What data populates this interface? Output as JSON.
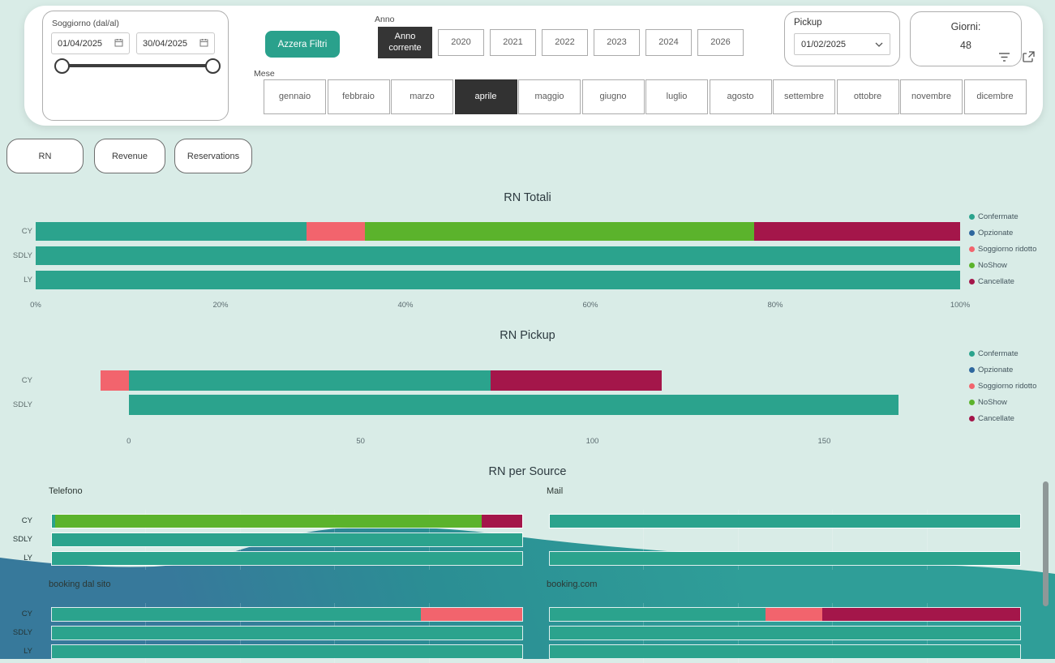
{
  "header": {
    "soggiorno": {
      "label": "Soggiorno (dal/al)",
      "date_from": "01/04/2025",
      "date_to": "30/04/2025"
    },
    "azzera_filtri": "Azzera Filtri",
    "anno": {
      "label": "Anno",
      "selected": "Anno corrente",
      "options": [
        "Anno corrente",
        "2020",
        "2021",
        "2022",
        "2023",
        "2024",
        "2026"
      ]
    },
    "mese": {
      "label": "Mese",
      "selected": "aprile",
      "options": [
        "gennaio",
        "febbraio",
        "marzo",
        "aprile",
        "maggio",
        "giugno",
        "luglio",
        "agosto",
        "settembre",
        "ottobre",
        "novembre",
        "dicembre"
      ]
    },
    "pickup": {
      "label": "Pickup",
      "value": "01/02/2025"
    },
    "giorni": {
      "label": "Giorni:",
      "value": "48"
    }
  },
  "tabs": [
    {
      "label": "RN"
    },
    {
      "label": "Revenue"
    },
    {
      "label": "Reservations"
    }
  ],
  "legend": {
    "items": [
      {
        "label": "Confermate",
        "color": "#2BA38D"
      },
      {
        "label": "Opzionate",
        "color": "#2E679E"
      },
      {
        "label": "Soggiorno ridotto",
        "color": "#F2646D"
      },
      {
        "label": "NoShow",
        "color": "#5BB32C"
      },
      {
        "label": "Cancellate",
        "color": "#A4164A"
      }
    ]
  },
  "chart_data": [
    {
      "type": "bar",
      "variant": "stacked-100",
      "title": "RN Totali",
      "categories": [
        "CY",
        "SDLY",
        "LY"
      ],
      "x_ticks": [
        "0%",
        "20%",
        "40%",
        "60%",
        "80%",
        "100%"
      ],
      "xlim": [
        0,
        100
      ],
      "legend_position": "right",
      "series": [
        {
          "name": "Confermate",
          "values": [
            29.3,
            100,
            100
          ]
        },
        {
          "name": "Opzionate",
          "values": [
            0,
            0,
            0
          ]
        },
        {
          "name": "Soggiorno ridotto",
          "values": [
            6.3,
            0,
            0
          ]
        },
        {
          "name": "NoShow",
          "values": [
            42.1,
            0,
            0
          ]
        },
        {
          "name": "Cancellate",
          "values": [
            22.3,
            0,
            0
          ]
        }
      ]
    },
    {
      "type": "bar",
      "variant": "stacked",
      "title": "RN Pickup",
      "categories": [
        "CY",
        "SDLY"
      ],
      "x_ticks": [
        0,
        50,
        100,
        150
      ],
      "xlim": [
        -8,
        180
      ],
      "legend_position": "right",
      "rows": [
        {
          "label": "CY",
          "segments": [
            {
              "name": "Soggiorno ridotto",
              "from": -6,
              "to": 0
            },
            {
              "name": "Confermate",
              "from": 0,
              "to": 78
            },
            {
              "name": "Cancellate",
              "from": 78,
              "to": 115
            }
          ]
        },
        {
          "label": "SDLY",
          "segments": [
            {
              "name": "Confermate",
              "from": 0,
              "to": 166
            }
          ]
        }
      ]
    },
    {
      "type": "bar",
      "variant": "small-multiples-100",
      "title": "RN per Source",
      "categories": [
        "CY",
        "SDLY",
        "LY"
      ],
      "panels": [
        {
          "name": "Telefono",
          "rows": [
            [
              {
                "name": "Confermate",
                "pct": 0.7
              },
              {
                "name": "NoShow",
                "pct": 90.6
              },
              {
                "name": "Cancellate",
                "pct": 8.7
              }
            ],
            [
              {
                "name": "Confermate",
                "pct": 100
              }
            ],
            [
              {
                "name": "Confermate",
                "pct": 100
              }
            ]
          ]
        },
        {
          "name": "Mail",
          "rows": [
            [
              {
                "name": "Confermate",
                "pct": 100
              }
            ],
            [],
            [
              {
                "name": "Confermate",
                "pct": 100
              }
            ]
          ]
        },
        {
          "name": "booking dal sito",
          "rows": [
            [
              {
                "name": "Confermate",
                "pct": 78.5
              },
              {
                "name": "Soggiorno ridotto",
                "pct": 21.5
              }
            ],
            [
              {
                "name": "Confermate",
                "pct": 100
              }
            ],
            [
              {
                "name": "Confermate",
                "pct": 100
              }
            ]
          ]
        },
        {
          "name": "booking.com",
          "rows": [
            [
              {
                "name": "Confermate",
                "pct": 45.8
              },
              {
                "name": "Soggiorno ridotto",
                "pct": 12.2
              },
              {
                "name": "Cancellate",
                "pct": 42.0
              }
            ],
            [
              {
                "name": "Confermate",
                "pct": 100
              }
            ],
            [
              {
                "name": "Confermate",
                "pct": 100
              }
            ]
          ]
        }
      ]
    }
  ]
}
